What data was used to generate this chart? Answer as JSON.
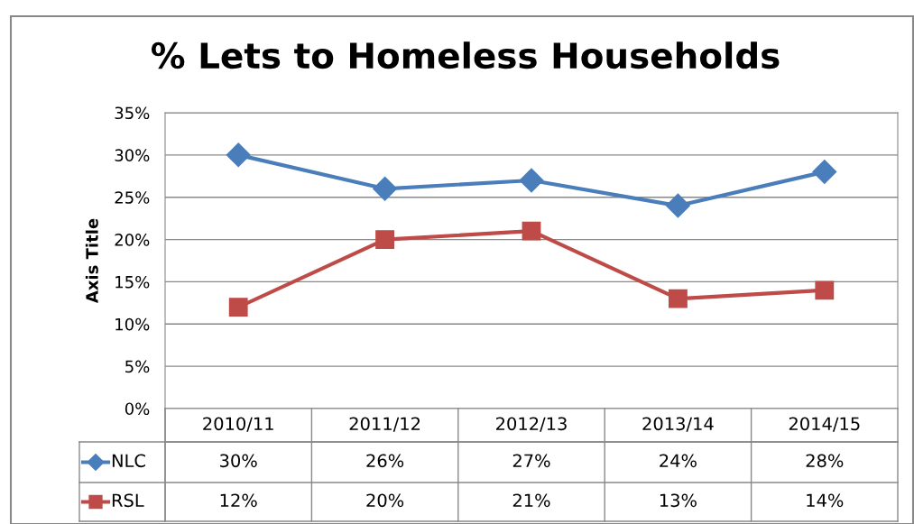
{
  "chart_data": {
    "type": "line",
    "title": "% Lets to Homeless Households",
    "ylabel": "Axis Title",
    "categories": [
      "2010/11",
      "2011/12",
      "2012/13",
      "2013/14",
      "2014/15"
    ],
    "series": [
      {
        "name": "NLC",
        "color": "#4a7ebb",
        "marker": "diamond",
        "values": [
          30,
          26,
          27,
          24,
          28
        ],
        "value_labels": [
          "30%",
          "26%",
          "27%",
          "24%",
          "28%"
        ]
      },
      {
        "name": "RSL",
        "color": "#be4b48",
        "marker": "square",
        "values": [
          12,
          20,
          21,
          13,
          14
        ],
        "value_labels": [
          "12%",
          "20%",
          "21%",
          "13%",
          "14%"
        ]
      }
    ],
    "ylim": [
      0,
      35
    ],
    "yticks": [
      {
        "value": 0,
        "label": "0%"
      },
      {
        "value": 5,
        "label": "5%"
      },
      {
        "value": 10,
        "label": "10%"
      },
      {
        "value": 15,
        "label": "15%"
      },
      {
        "value": 20,
        "label": "20%"
      },
      {
        "value": 25,
        "label": "25%"
      },
      {
        "value": 30,
        "label": "30%"
      },
      {
        "value": 35,
        "label": "35%"
      }
    ],
    "grid": "y",
    "line_style": "solid",
    "legend": "bottom left"
  }
}
